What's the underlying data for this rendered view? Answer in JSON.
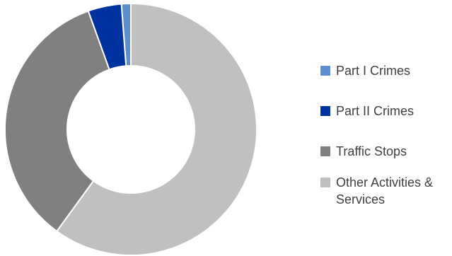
{
  "chart_data": {
    "type": "pie",
    "title": "",
    "categories": [
      "Part I Crimes",
      "Part II Crimes",
      "Traffic Stops",
      "Other Activities & Services"
    ],
    "values": [
      1.2,
      4.3,
      34.5,
      60.0
    ],
    "colors": [
      "#5B8FD0",
      "#0033A0",
      "#808080",
      "#C0C0C0"
    ],
    "legend_position": "right"
  }
}
